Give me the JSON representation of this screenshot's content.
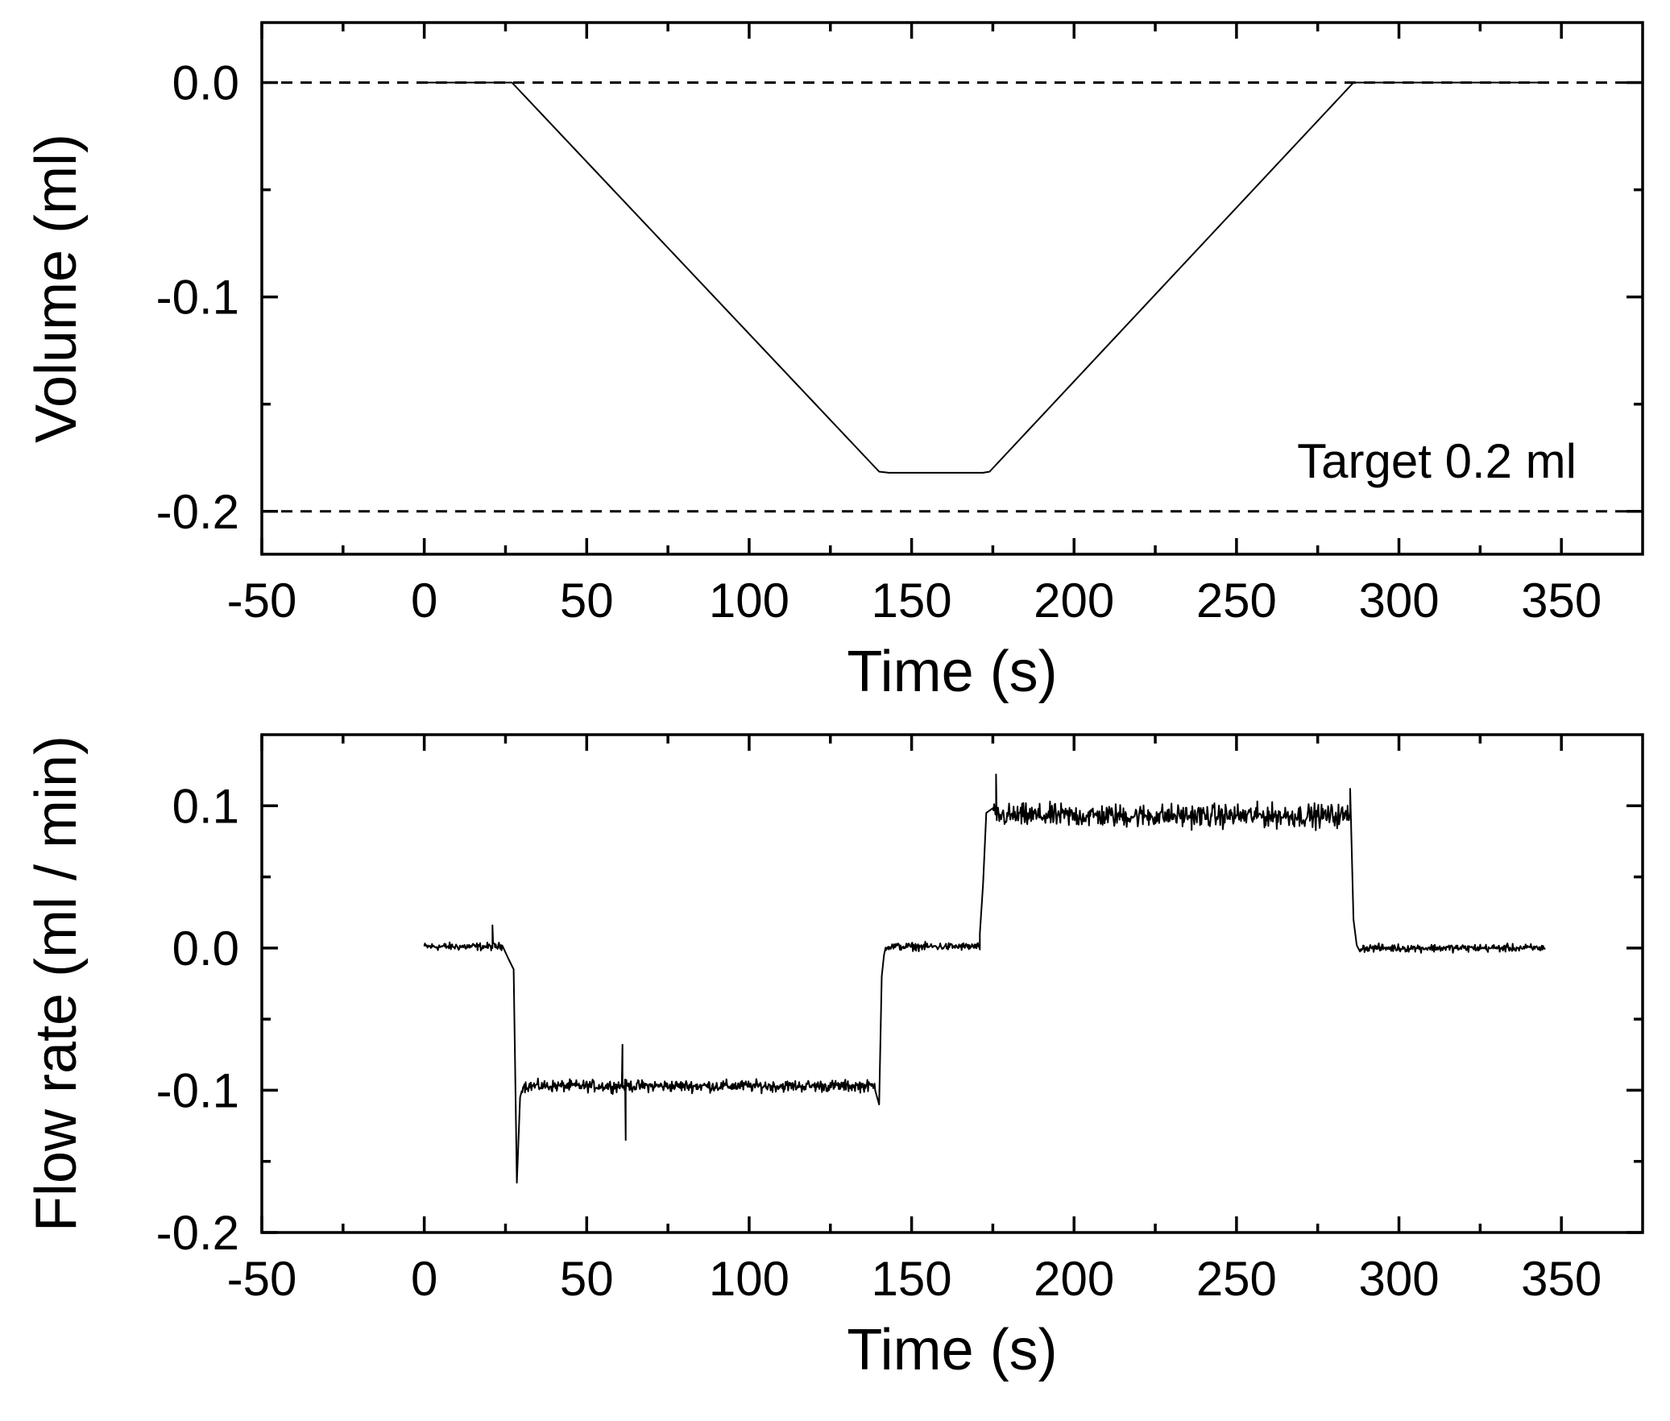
{
  "chart_data": [
    {
      "type": "line",
      "title": "",
      "xlabel": "Time (s)",
      "ylabel": "Volume (ml)",
      "xlim": [
        -50,
        375
      ],
      "ylim": [
        -0.22,
        0.028
      ],
      "xticks": [
        -50,
        0,
        50,
        100,
        150,
        200,
        250,
        300,
        350
      ],
      "xtick_labels": [
        "-50",
        "0",
        "50",
        "100",
        "150",
        "200",
        "250",
        "300",
        "350"
      ],
      "yticks": [
        0.0,
        -0.1,
        -0.2
      ],
      "ytick_labels": [
        "0.0",
        "-0.1",
        "-0.2"
      ],
      "reference_lines": [
        0.0,
        -0.2
      ],
      "annotation": "Target 0.2 ml",
      "series": [
        {
          "name": "Volume",
          "x": [
            0,
            27,
            140,
            143,
            172,
            174,
            286,
            345
          ],
          "y": [
            0.0,
            0.0,
            -0.1815,
            -0.182,
            -0.182,
            -0.1815,
            0.0,
            0.0
          ]
        }
      ]
    },
    {
      "type": "line",
      "title": "",
      "xlabel": "Time (s)",
      "ylabel": "Flow rate (ml / min)",
      "xlim": [
        -50,
        375
      ],
      "ylim": [
        -0.2,
        0.15
      ],
      "xticks": [
        -50,
        0,
        50,
        100,
        150,
        200,
        250,
        300,
        350
      ],
      "xtick_labels": [
        "-50",
        "0",
        "50",
        "100",
        "150",
        "200",
        "250",
        "300",
        "350"
      ],
      "yticks": [
        0.1,
        0.0,
        -0.1,
        -0.2
      ],
      "ytick_labels": [
        "0.1",
        "0.0",
        "-0.1",
        "-0.2"
      ],
      "series": [
        {
          "name": "Flow rate",
          "segments": [
            {
              "x_start": 0,
              "x_end": 24,
              "level": 0.001,
              "noise": 0.004
            },
            {
              "x_start": 30,
              "x_end": 139,
              "level": -0.097,
              "noise": 0.006
            },
            {
              "x_start": 142,
              "x_end": 171,
              "level": 0.001,
              "noise": 0.004
            },
            {
              "x_start": 175,
              "x_end": 285,
              "level": 0.093,
              "noise": 0.012
            },
            {
              "x_start": 288,
              "x_end": 345,
              "level": 0.0,
              "noise": 0.004
            }
          ],
          "events": [
            {
              "x": 21,
              "y": 0.016
            },
            {
              "x": 26,
              "y": -0.008
            },
            {
              "x": 27.5,
              "y": -0.015
            },
            {
              "x": 28.5,
              "y": -0.165
            },
            {
              "x": 29.5,
              "y": -0.105
            },
            {
              "x": 61,
              "y": -0.068
            },
            {
              "x": 62,
              "y": -0.135
            },
            {
              "x": 63,
              "y": -0.095
            },
            {
              "x": 140,
              "y": -0.11
            },
            {
              "x": 140.8,
              "y": -0.02
            },
            {
              "x": 141.5,
              "y": -0.005
            },
            {
              "x": 171,
              "y": 0.01
            },
            {
              "x": 172,
              "y": 0.045
            },
            {
              "x": 173,
              "y": 0.095
            },
            {
              "x": 176,
              "y": 0.122
            },
            {
              "x": 285,
              "y": 0.112
            },
            {
              "x": 286,
              "y": 0.02
            },
            {
              "x": 287,
              "y": 0.002
            }
          ]
        }
      ]
    }
  ]
}
